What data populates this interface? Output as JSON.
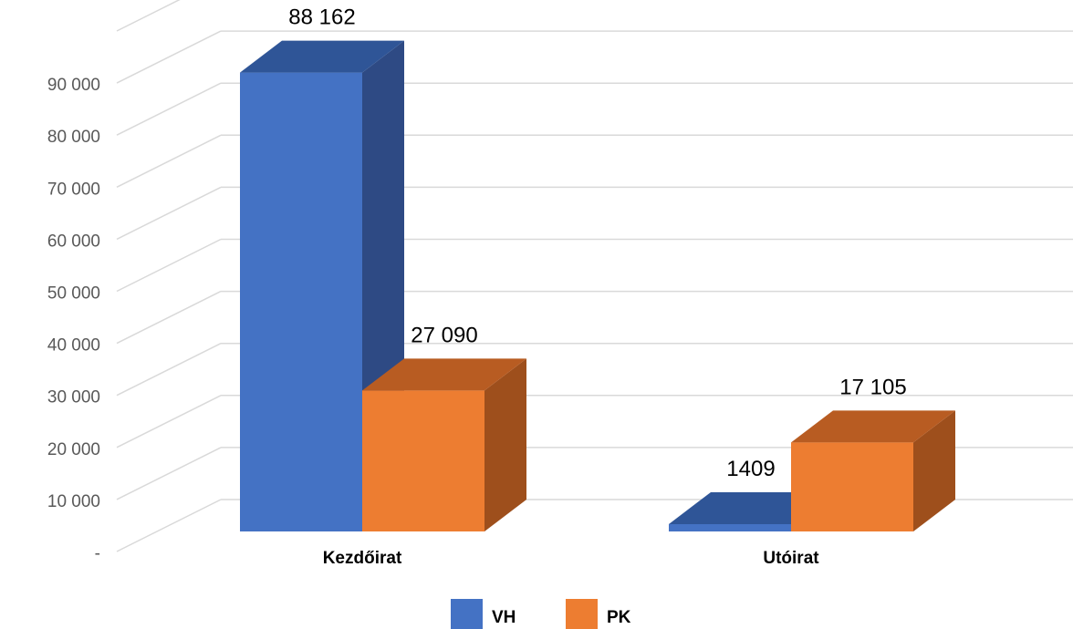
{
  "chart_data": {
    "type": "bar",
    "three_d": true,
    "categories": [
      "Kezdőirat",
      "Utóirat"
    ],
    "series": [
      {
        "name": "VH",
        "values": [
          88162,
          1409
        ],
        "labels": [
          "88 162",
          "1409"
        ],
        "color": "#4472C4",
        "side_color": "#2E4A84",
        "top_color": "#2F5597"
      },
      {
        "name": "PK",
        "values": [
          27090,
          17105
        ],
        "labels": [
          "27 090",
          "17 105"
        ],
        "color": "#ED7D31",
        "side_color": "#9E4F1C",
        "top_color": "#B85C22"
      }
    ],
    "ylim": [
      0,
      100000
    ],
    "yticks": [
      0,
      10000,
      20000,
      30000,
      40000,
      50000,
      60000,
      70000,
      80000,
      90000
    ],
    "ytick_labels": [
      "-",
      "10 000",
      "20 000",
      "30 000",
      "40 000",
      "50 000",
      "60 000",
      "70 000",
      "80 000",
      "90 000"
    ],
    "grid": true,
    "legend_position": "bottom",
    "title": "",
    "xlabel": "",
    "ylabel": ""
  }
}
